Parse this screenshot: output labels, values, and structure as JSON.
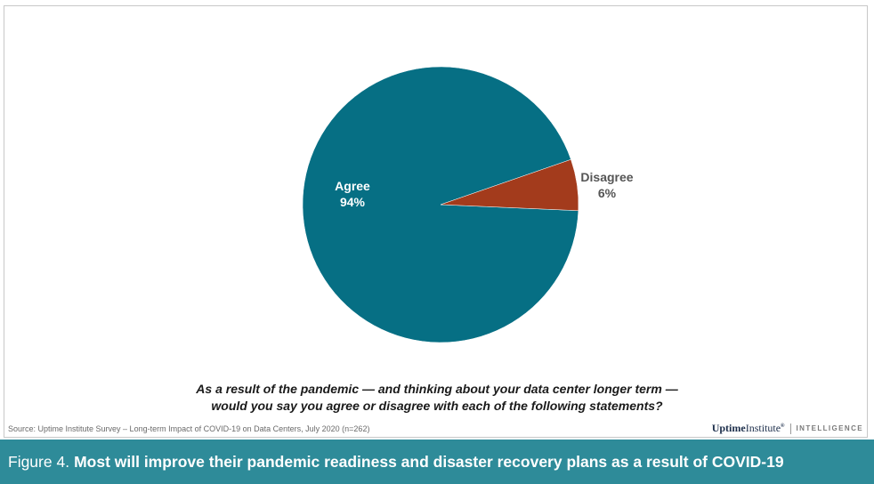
{
  "chart_data": {
    "type": "pie",
    "slices": [
      {
        "label": "Agree",
        "value": 94,
        "value_label": "94%",
        "color": "#066f84"
      },
      {
        "label": "Disagree",
        "value": 6,
        "value_label": "6%",
        "color": "#a33b1c"
      }
    ],
    "title": "",
    "question": [
      "As a result of the pandemic — and thinking about your data center longer term —",
      "would you say you agree or disagree with each of the following statements?"
    ]
  },
  "source": "Source: Uptime Institute Survey – Long-term Impact of COVID-19 on Data Centers, July 2020 (n=262)",
  "brand": {
    "name_bold": "Uptime",
    "name_light": "Institute",
    "mark": "®",
    "suffix": "INTELLIGENCE"
  },
  "caption": {
    "prefix": "Figure 4.",
    "text": "Most will improve their pandemic readiness and disaster recovery plans as a result of COVID-19"
  },
  "colors": {
    "caption_bar": "#2e8b99",
    "agree": "#066f84",
    "disagree": "#a33b1c"
  }
}
